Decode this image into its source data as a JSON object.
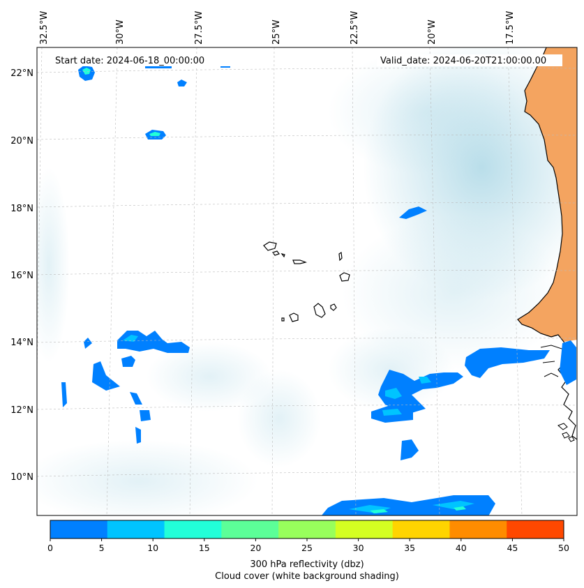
{
  "map": {
    "start_date_label": "Start date: 2024-06-18_00:00:00",
    "valid_date_label": "Valid_date: 2024-06-20T21:00:00.00",
    "lon_ticks": [
      "32.5°W",
      "30°W",
      "27.5°W",
      "25°W",
      "22.5°W",
      "20°W",
      "17.5°W"
    ],
    "lat_ticks": [
      "22°N",
      "20°N",
      "18°N",
      "16°N",
      "14°N",
      "12°N",
      "10°N"
    ],
    "colors": {
      "land": "#f4a460",
      "cloud": "#add8e6",
      "coastline": "#000000"
    }
  },
  "colorbar": {
    "ticks": [
      "0",
      "5",
      "10",
      "15",
      "20",
      "25",
      "30",
      "35",
      "40",
      "45",
      "50"
    ],
    "colors": [
      "#0080ff",
      "#00c4ff",
      "#22ffd8",
      "#5cff98",
      "#98ff5c",
      "#d4ff22",
      "#ffd400",
      "#ff8c00",
      "#ff4800"
    ],
    "label_line1": "300 hPa reflectivity (dbz)",
    "label_line2": "Cloud cover (white background shading)"
  }
}
